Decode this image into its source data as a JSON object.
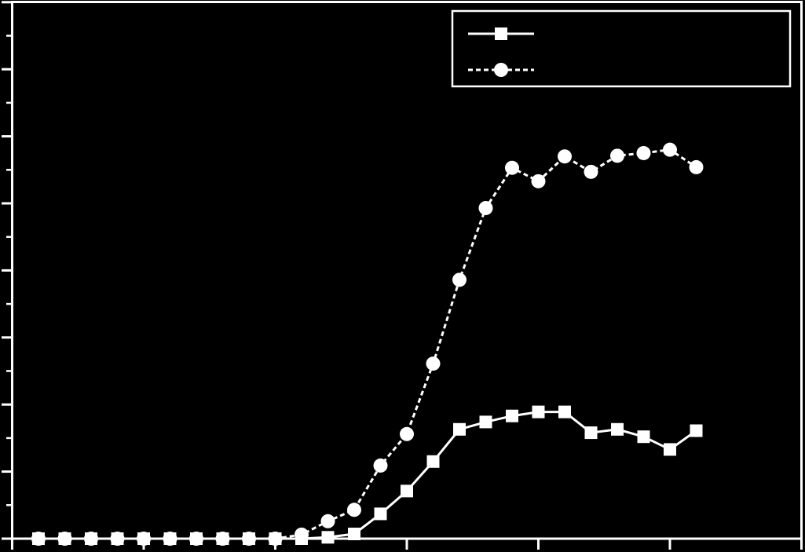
{
  "chart_data": {
    "type": "line",
    "x": [
      1,
      2,
      3,
      4,
      5,
      6,
      7,
      8,
      9,
      10,
      11,
      12,
      13,
      14,
      15,
      16,
      17,
      18,
      19,
      20,
      21,
      22,
      23,
      24,
      25,
      26
    ],
    "series": [
      {
        "color": "#ffffff",
        "marker": "square",
        "linestyle": "solid",
        "values": [
          0,
          0,
          0,
          0,
          0,
          0,
          0,
          0,
          0,
          0,
          0,
          0.02,
          0.07,
          0.37,
          0.71,
          1.15,
          1.63,
          1.74,
          1.83,
          1.89,
          1.89,
          1.58,
          1.63,
          1.52,
          1.33,
          1.61
        ]
      },
      {
        "color": "#ffffff",
        "marker": "circle",
        "linestyle": "dashed",
        "values": [
          0,
          0,
          0,
          0,
          0,
          0,
          0,
          0,
          0,
          0,
          0.06,
          0.26,
          0.43,
          1.09,
          1.56,
          2.61,
          3.86,
          4.93,
          5.53,
          5.33,
          5.7,
          5.47,
          5.71,
          5.75,
          5.8,
          5.54
        ]
      }
    ],
    "xlim": [
      0,
      30
    ],
    "xticks": [
      0,
      5,
      10,
      15,
      20,
      25,
      30
    ],
    "ylim": [
      0,
      8
    ],
    "yticks": [
      0,
      1,
      2,
      3,
      4,
      5,
      6,
      7,
      8
    ],
    "legend": "upper right",
    "background": "#000000"
  }
}
